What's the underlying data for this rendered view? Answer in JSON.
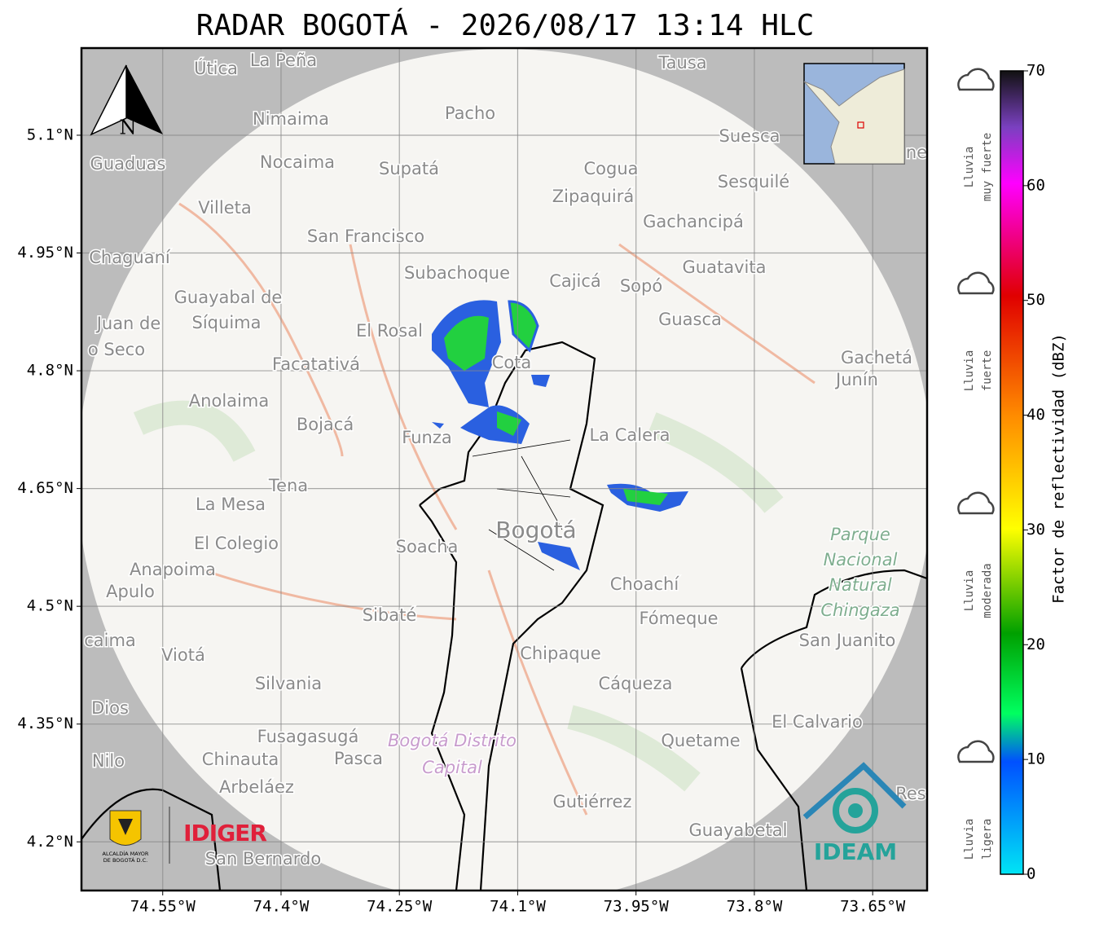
{
  "title": "RADAR BOGOTÁ - 2026/08/17 13:14 HLC",
  "north": "N",
  "map": {
    "xlim": [
      -74.653,
      -73.581
    ],
    "ylim": [
      4.138,
      5.211
    ],
    "xticks": [
      {
        "value": -74.55,
        "label": "74.55°W"
      },
      {
        "value": -74.4,
        "label": "74.4°W"
      },
      {
        "value": -74.25,
        "label": "74.25°W"
      },
      {
        "value": -74.1,
        "label": "74.1°W"
      },
      {
        "value": -73.95,
        "label": "73.95°W"
      },
      {
        "value": -73.8,
        "label": "73.8°W"
      },
      {
        "value": -73.65,
        "label": "73.65°W"
      }
    ],
    "yticks": [
      {
        "value": 4.2,
        "label": "4.2°N"
      },
      {
        "value": 4.35,
        "label": "4.35°N"
      },
      {
        "value": 4.5,
        "label": "4.5°N"
      },
      {
        "value": 4.65,
        "label": "4.65°N"
      },
      {
        "value": 4.8,
        "label": "4.8°N"
      },
      {
        "value": 4.95,
        "label": "4.95°N"
      },
      {
        "value": 5.1,
        "label": "5.1°N"
      }
    ],
    "places": [
      "Útica",
      "La Peña",
      "Tausa",
      "Pacho",
      "Nimaima",
      "Guaduas",
      "Nocaima",
      "Supatá",
      "Cogua",
      "Suesca",
      "Sesquilé",
      "Zipaquirá",
      "Villeta",
      "Gachancipá",
      "San Francisco",
      "Chaguaní",
      "Subachoque",
      "Guatavita",
      "Cajicá",
      "Sopó",
      "Guayabal de",
      "Síquima",
      "Juan de",
      "o Seco",
      "El Rosal",
      "Guasca",
      "Facatativá",
      "Cota",
      "Gachetá",
      "Junín",
      "Anolaima",
      "Bojacá",
      "La Calera",
      "Funza",
      "Tena",
      "La Mesa",
      "El Colegio",
      "Soacha",
      "Bogotá",
      "Anapoima",
      "Apulo",
      "Choachí",
      "Sibaté",
      "Fómeque",
      "San Juanito",
      "caima",
      "Viotá",
      "Chipaque",
      "Silvania",
      "Cáqueza",
      "Dios",
      "El Calvario",
      "Fusagasugá",
      "Quetame",
      "Nilo",
      "Chinauta",
      "Pasca",
      "Arbeláez",
      "Gutiérrez",
      "Res",
      "Guayabetal",
      "San Bernardo",
      "ne"
    ],
    "park": [
      "Parque",
      "Nacional",
      "Natural",
      "Chingaza"
    ],
    "district": [
      "Bogotá Distrito",
      "Capital"
    ]
  },
  "colorbar": {
    "label": "Factor de reflectividad (dBZ)",
    "lim": [
      0,
      70
    ],
    "ticks": [
      0,
      10,
      20,
      30,
      40,
      50,
      60,
      70
    ]
  },
  "rain_legend": [
    [
      "Lluvia",
      "muy fuerte"
    ],
    [
      "Lluvia",
      "fuerte"
    ],
    [
      "Lluvia",
      "moderada"
    ],
    [
      "Lluvia",
      "ligera"
    ]
  ],
  "logos": {
    "alcaldia": [
      "ALCALDÍA MAYOR",
      "DE BOGOTÁ D.C."
    ],
    "idiger": "IDIGER",
    "ideam": "IDEAM"
  }
}
